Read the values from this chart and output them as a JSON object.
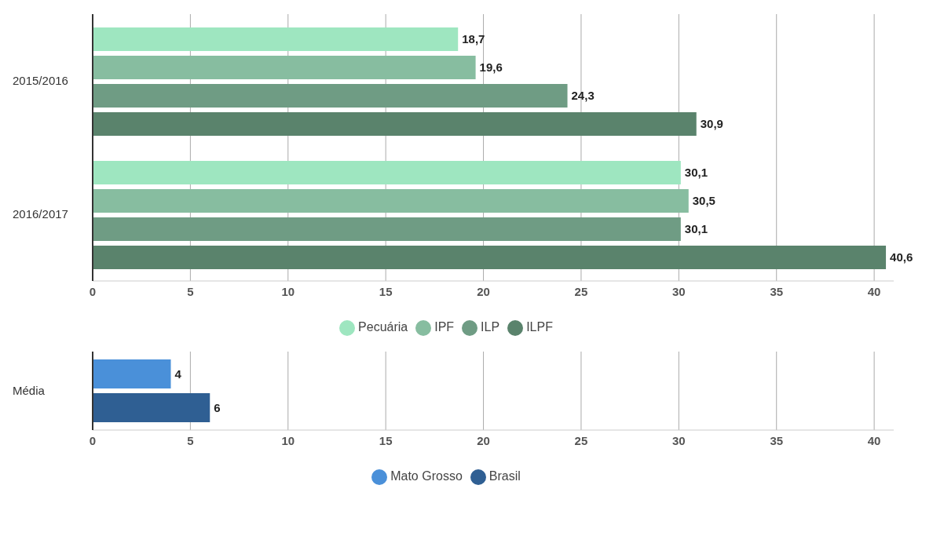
{
  "chart_data": [
    {
      "type": "bar",
      "orientation": "horizontal",
      "categories": [
        "2015/2016",
        "2016/2017"
      ],
      "series": [
        {
          "name": "Pecuária",
          "color": "#9ee6c0",
          "values": [
            18.7,
            30.1
          ],
          "value_labels": [
            "18,7",
            "30,1"
          ]
        },
        {
          "name": "IPF",
          "color": "#87bda0",
          "values": [
            19.6,
            30.5
          ],
          "value_labels": [
            "19,6",
            "30,5"
          ]
        },
        {
          "name": "ILP",
          "color": "#6f9c84",
          "values": [
            24.3,
            30.1
          ],
          "value_labels": [
            "24,3",
            "30,1"
          ]
        },
        {
          "name": "ILPF",
          "color": "#5a836c",
          "values": [
            30.9,
            40.6
          ],
          "value_labels": [
            "30,9",
            "40,6"
          ]
        }
      ],
      "xlim": [
        0,
        41
      ],
      "xticks": [
        0,
        5,
        10,
        15,
        20,
        25,
        30,
        35,
        40
      ],
      "grid": "x",
      "legend": "bottom"
    },
    {
      "type": "bar",
      "orientation": "horizontal",
      "categories": [
        "Média"
      ],
      "series": [
        {
          "name": "Mato Grosso",
          "color": "#4a90d9",
          "values": [
            4
          ]
        },
        {
          "name": "Brasil",
          "color": "#2f5f93",
          "values": [
            6
          ]
        }
      ],
      "xlim": [
        0,
        41
      ],
      "xticks": [
        0,
        5,
        10,
        15,
        20,
        25,
        30,
        35,
        40
      ],
      "grid": "x",
      "legend": "bottom",
      "data_labels": true
    }
  ]
}
